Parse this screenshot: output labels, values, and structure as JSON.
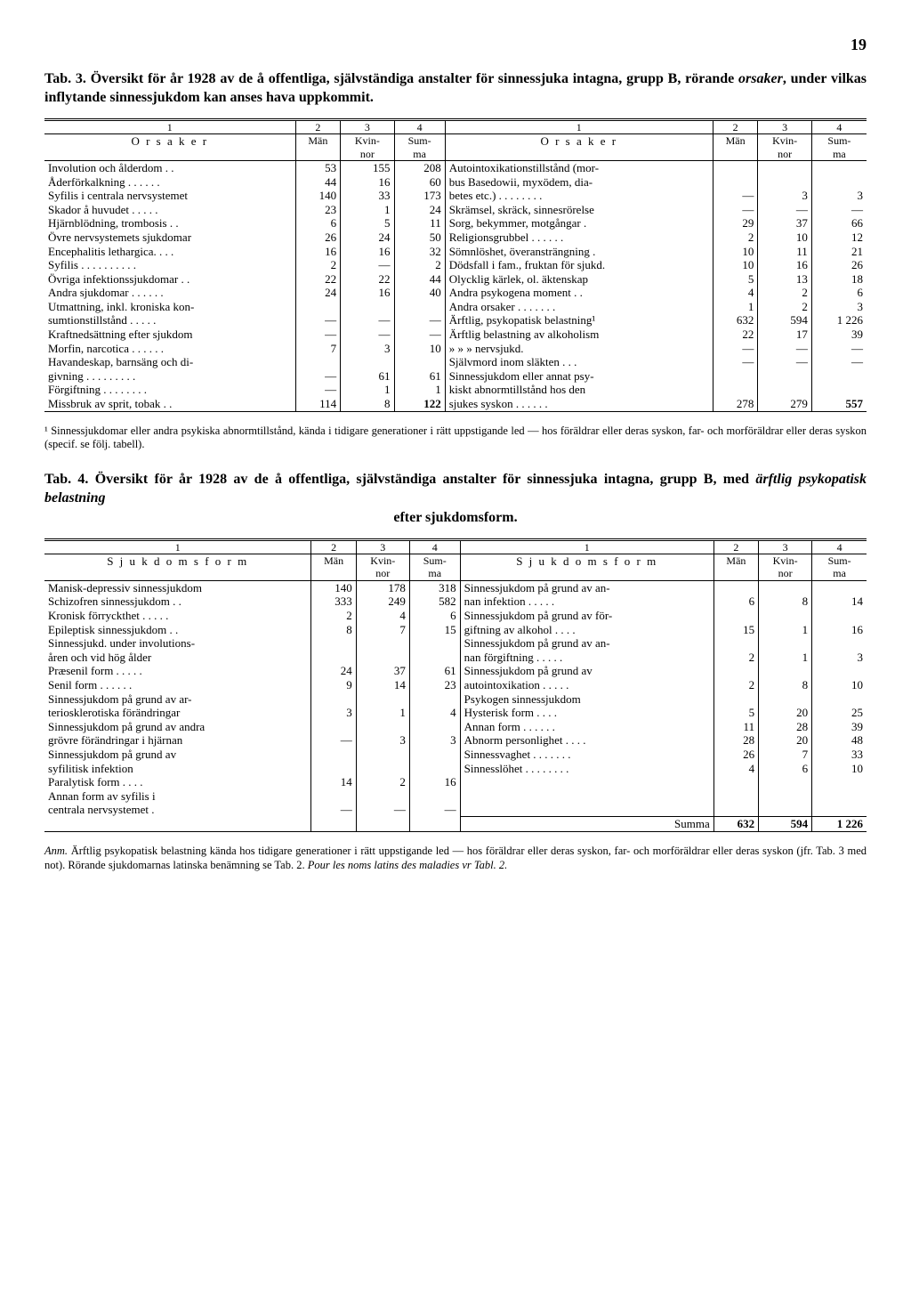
{
  "page_number": "19",
  "tab3": {
    "number": "Tab. 3.",
    "title_pre": "Översikt för år 1928 av de å offentliga, självständiga anstalter för sinnessjuka intagna, grupp B, rörande ",
    "title_ital": "orsaker",
    "title_post": ", under vilkas inflytande sinnessjukdom kan anses hava uppkommit.",
    "colnums": [
      "1",
      "2",
      "3",
      "4",
      "1",
      "2",
      "3",
      "4"
    ],
    "header_left": "O r s a k e r",
    "header_right": "O r s a k e r",
    "sub_man": "Män",
    "sub_kvin": "Kvin-\nnor",
    "sub_sum": "Sum-\nma",
    "left_rows": [
      {
        "l": "Involution och ålderdom . .",
        "m": "53",
        "k": "155",
        "s": "208"
      },
      {
        "l": "Åderförkalkning . . . . . .",
        "m": "44",
        "k": "16",
        "s": "60"
      },
      {
        "l": "Syfilis i centrala nervsystemet",
        "m": "140",
        "k": "33",
        "s": "173"
      },
      {
        "l": "Skador å huvudet . . . . .",
        "m": "23",
        "k": "1",
        "s": "24"
      },
      {
        "l": "Hjärnblödning, trombosis . .",
        "m": "6",
        "k": "5",
        "s": "11"
      },
      {
        "l": "Övre nervsystemets sjukdomar",
        "m": "26",
        "k": "24",
        "s": "50"
      },
      {
        "l": "Encephalitis lethargica. . . .",
        "m": "16",
        "k": "16",
        "s": "32"
      },
      {
        "l": "Syfilis . . . . . . . . . .",
        "m": "2",
        "k": "—",
        "s": "2"
      },
      {
        "l": "Övriga infektionssjukdomar . .",
        "m": "22",
        "k": "22",
        "s": "44"
      },
      {
        "l": "Andra sjukdomar . . . . . .",
        "m": "24",
        "k": "16",
        "s": "40"
      },
      {
        "l": "Utmattning, inkl. kroniska kon-",
        "m": "",
        "k": "",
        "s": ""
      },
      {
        "l": "  sumtionstillstånd . . . . .",
        "m": "—",
        "k": "—",
        "s": "—"
      },
      {
        "l": "Kraftnedsättning efter sjukdom",
        "m": "—",
        "k": "—",
        "s": "—"
      },
      {
        "l": "Morfin, narcotica . . . . . .",
        "m": "7",
        "k": "3",
        "s": "10"
      },
      {
        "l": "Havandeskap, barnsäng och di-",
        "m": "",
        "k": "",
        "s": ""
      },
      {
        "l": "  givning . . . . . . . . .",
        "m": "—",
        "k": "61",
        "s": "61"
      },
      {
        "l": "Förgiftning . . . . . . . .",
        "m": "—",
        "k": "1",
        "s": "1"
      },
      {
        "l": "Missbruk av sprit, tobak . .",
        "m": "114",
        "k": "8",
        "s": "122"
      }
    ],
    "right_rows": [
      {
        "l": "Autointoxikationstillstånd (mor-",
        "m": "",
        "k": "",
        "s": ""
      },
      {
        "l": "  bus Basedowii, myxödem, dia-",
        "m": "",
        "k": "",
        "s": ""
      },
      {
        "l": "  betes etc.) . . . . . . . .",
        "m": "—",
        "k": "3",
        "s": "3"
      },
      {
        "l": "Skrämsel, skräck, sinnesrörelse",
        "m": "—",
        "k": "—",
        "s": "—"
      },
      {
        "l": "Sorg, bekymmer, motgångar .",
        "m": "29",
        "k": "37",
        "s": "66"
      },
      {
        "l": "Religionsgrubbel . . . . . .",
        "m": "2",
        "k": "10",
        "s": "12"
      },
      {
        "l": "Sömnlöshet, överansträngning .",
        "m": "10",
        "k": "11",
        "s": "21"
      },
      {
        "l": "Dödsfall i fam., fruktan för sjukd.",
        "m": "10",
        "k": "16",
        "s": "26"
      },
      {
        "l": "Olycklig kärlek, ol. äktenskap",
        "m": "5",
        "k": "13",
        "s": "18"
      },
      {
        "l": "Andra psykogena moment . .",
        "m": "4",
        "k": "2",
        "s": "6"
      },
      {
        "l": "Andra orsaker . . . . . . .",
        "m": "1",
        "k": "2",
        "s": "3"
      },
      {
        "l": "Ärftlig, psykopatisk belastning¹",
        "m": "632",
        "k": "594",
        "s": "1 226"
      },
      {
        "l": "Ärftlig belastning av alkoholism",
        "m": "22",
        "k": "17",
        "s": "39"
      },
      {
        "l": "  »     »     » nervsjukd.",
        "m": "—",
        "k": "—",
        "s": "—"
      },
      {
        "l": "Självmord inom släkten . . .",
        "m": "—",
        "k": "—",
        "s": "—"
      },
      {
        "l": "Sinnessjukdom eller annat psy-",
        "m": "",
        "k": "",
        "s": ""
      },
      {
        "l": "  kiskt abnormtillstånd hos den",
        "m": "",
        "k": "",
        "s": ""
      },
      {
        "l": "  sjukes syskon . . . . . .",
        "m": "278",
        "k": "279",
        "s": "557"
      }
    ],
    "footnote": "¹ Sinnessjukdomar eller andra psykiska abnormtillstånd, kända i tidigare generationer i rätt uppstigande led — hos föräldrar eller deras syskon, far- och morföräldrar eller deras syskon (specif. se följ. tabell)."
  },
  "tab4": {
    "number": "Tab. 4.",
    "title_pre": "Översikt för år 1928 av de å offentliga, självständiga anstalter för sinnessjuka intagna, grupp B, med ",
    "title_ital": "ärftlig psykopatisk belastning",
    "title_post": " efter sjukdomsform.",
    "colnums": [
      "1",
      "2",
      "3",
      "4",
      "1",
      "2",
      "3",
      "4"
    ],
    "header_left": "S j u k d o m s f o r m",
    "header_right": "S j u k d o m s f o r m",
    "sub_man": "Män",
    "sub_kvin": "Kvin-\nnor",
    "sub_sum": "Sum-\nma",
    "left_rows": [
      {
        "l": "Manisk-depressiv sinnessjukdom",
        "m": "140",
        "k": "178",
        "s": "318"
      },
      {
        "l": "Schizofren sinnessjukdom . .",
        "m": "333",
        "k": "249",
        "s": "582"
      },
      {
        "l": "Kronisk förryckthet . . . . .",
        "m": "2",
        "k": "4",
        "s": "6"
      },
      {
        "l": "Epileptisk sinnessjukdom . .",
        "m": "8",
        "k": "7",
        "s": "15"
      },
      {
        "l": "Sinnessjukd. under involutions-",
        "m": "",
        "k": "",
        "s": ""
      },
      {
        "l": "  åren och vid hög ålder",
        "m": "",
        "k": "",
        "s": ""
      },
      {
        "l": "    Præsenil form . . . . .",
        "m": "24",
        "k": "37",
        "s": "61"
      },
      {
        "l": "    Senil form . . . . . .",
        "m": "9",
        "k": "14",
        "s": "23"
      },
      {
        "l": "Sinnessjukdom på grund av ar-",
        "m": "",
        "k": "",
        "s": ""
      },
      {
        "l": "  teriosklerotiska förändringar",
        "m": "3",
        "k": "1",
        "s": "4"
      },
      {
        "l": "Sinnessjukdom på grund av andra",
        "m": "",
        "k": "",
        "s": ""
      },
      {
        "l": "  grövre förändringar i hjärnan",
        "m": "—",
        "k": "3",
        "s": "3"
      },
      {
        "l": "Sinnessjukdom på grund av",
        "m": "",
        "k": "",
        "s": ""
      },
      {
        "l": "  syfilitisk infektion",
        "m": "",
        "k": "",
        "s": ""
      },
      {
        "l": "    Paralytisk form . . . .",
        "m": "14",
        "k": "2",
        "s": "16"
      },
      {
        "l": "    Annan form av syfilis i",
        "m": "",
        "k": "",
        "s": ""
      },
      {
        "l": "    centrala nervsystemet .",
        "m": "—",
        "k": "—",
        "s": "—"
      }
    ],
    "right_rows": [
      {
        "l": "Sinnessjukdom på grund av an-",
        "m": "",
        "k": "",
        "s": ""
      },
      {
        "l": "  nan infektion . . . . .",
        "m": "6",
        "k": "8",
        "s": "14"
      },
      {
        "l": "Sinnessjukdom på grund av för-",
        "m": "",
        "k": "",
        "s": ""
      },
      {
        "l": "  giftning av alkohol . . . .",
        "m": "15",
        "k": "1",
        "s": "16"
      },
      {
        "l": "Sinnessjukdom på grund av an-",
        "m": "",
        "k": "",
        "s": ""
      },
      {
        "l": "  nan förgiftning . . . . .",
        "m": "2",
        "k": "1",
        "s": "3"
      },
      {
        "l": "Sinnessjukdom på grund av",
        "m": "",
        "k": "",
        "s": ""
      },
      {
        "l": "  autointoxikation . . . . .",
        "m": "2",
        "k": "8",
        "s": "10"
      },
      {
        "l": "Psykogen sinnessjukdom",
        "m": "",
        "k": "",
        "s": ""
      },
      {
        "l": "    Hysterisk form . . . .",
        "m": "5",
        "k": "20",
        "s": "25"
      },
      {
        "l": "    Annan form . . . . . .",
        "m": "11",
        "k": "28",
        "s": "39"
      },
      {
        "l": "Abnorm personlighet . . . .",
        "m": "28",
        "k": "20",
        "s": "48"
      },
      {
        "l": "Sinnessvaghet . . . . . . .",
        "m": "26",
        "k": "7",
        "s": "33"
      },
      {
        "l": "Sinnesslöhet . . . . . . . .",
        "m": "4",
        "k": "6",
        "s": "10"
      }
    ],
    "sum_label": "Summa",
    "sum_m": "632",
    "sum_k": "594",
    "sum_s": "1 226"
  },
  "anm": {
    "label": "Anm.",
    "text": " Ärftlig psykopatisk belastning kända hos tidigare generationer i rätt uppstigande led — hos föräldrar eller deras syskon, far- och morföräldrar eller deras syskon (jfr. Tab. 3 med not). Rörande sjukdomarnas latinska benämning se Tab. 2. ",
    "ital": "Pour les noms latins des maladies vr Tabl. 2."
  }
}
